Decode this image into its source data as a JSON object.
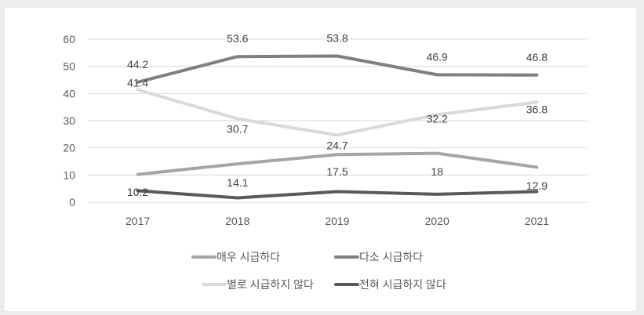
{
  "chart_data": {
    "type": "line",
    "title": "",
    "xlabel": "",
    "ylabel": "",
    "categories": [
      "2017",
      "2018",
      "2019",
      "2020",
      "2021"
    ],
    "ylim": [
      0,
      60
    ],
    "yticks": [
      "0",
      "10",
      "20",
      "30",
      "40",
      "50",
      "60"
    ],
    "grid": true,
    "legend_position": "bottom",
    "series": [
      {
        "name": "매우 시급하다",
        "values": [
          10.2,
          14.1,
          17.5,
          18,
          12.9
        ],
        "color": "#a5a5a5",
        "labels": [
          "10.2",
          "14.1",
          "17.5",
          "18",
          "12.9"
        ]
      },
      {
        "name": "다소 시급하다",
        "values": [
          44.2,
          53.6,
          53.8,
          46.9,
          46.8
        ],
        "color": "#7f7f7f",
        "labels": [
          "44.2",
          "53.6",
          "53.8",
          "46.9",
          "46.8"
        ]
      },
      {
        "name": "별로 시급하지 않다",
        "values": [
          41.4,
          30.7,
          24.7,
          32.2,
          36.8
        ],
        "color": "#d9d9d9",
        "labels": [
          "41.4",
          "30.7",
          "24.7",
          "32.2",
          "36.8"
        ]
      },
      {
        "name": "전혀 시급하지 않다",
        "values": [
          4.2,
          1.6,
          3.9,
          2.9,
          3.9
        ],
        "color": "#595959",
        "labels": []
      }
    ]
  }
}
